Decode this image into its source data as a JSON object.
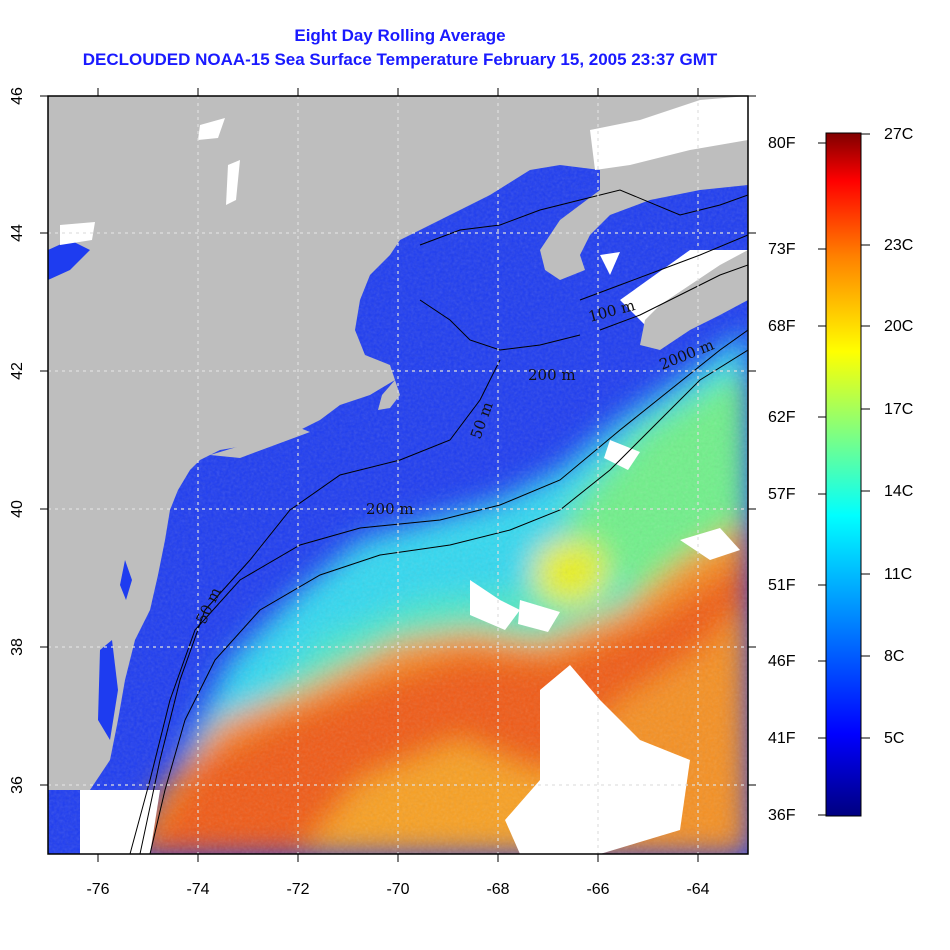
{
  "title_line1": "Eight Day Rolling Average",
  "title_line2": "DECLOUDED NOAA-15 Sea Surface Temperature February 15, 2005 23:37 GMT",
  "map": {
    "lon_range": [
      -77,
      -63
    ],
    "lat_range": [
      35,
      46
    ],
    "lon_ticks": [
      "-76",
      "-74",
      "-72",
      "-70",
      "-68",
      "-66",
      "-64"
    ],
    "lat_ticks": [
      "36",
      "38",
      "40",
      "42",
      "44",
      "46"
    ],
    "land_color": "#bebebe",
    "cloud_color": "#ffffff",
    "contour_labels": [
      "50 m",
      "200 m",
      "100 m",
      "2000 m",
      "200 m",
      "50 m",
      "100 m"
    ]
  },
  "colorbar": {
    "celsius_labels": [
      "27C",
      "23C",
      "20C",
      "17C",
      "14C",
      "11C",
      "8C",
      "5C"
    ],
    "fahrenheit_labels": [
      "80F",
      "73F",
      "68F",
      "62F",
      "57F",
      "51F",
      "46F",
      "41F",
      "36F"
    ],
    "colors": [
      "#000080",
      "#0000ff",
      "#0080ff",
      "#00ffff",
      "#80ff80",
      "#ffff00",
      "#ff8000",
      "#ff0000",
      "#800000"
    ]
  }
}
